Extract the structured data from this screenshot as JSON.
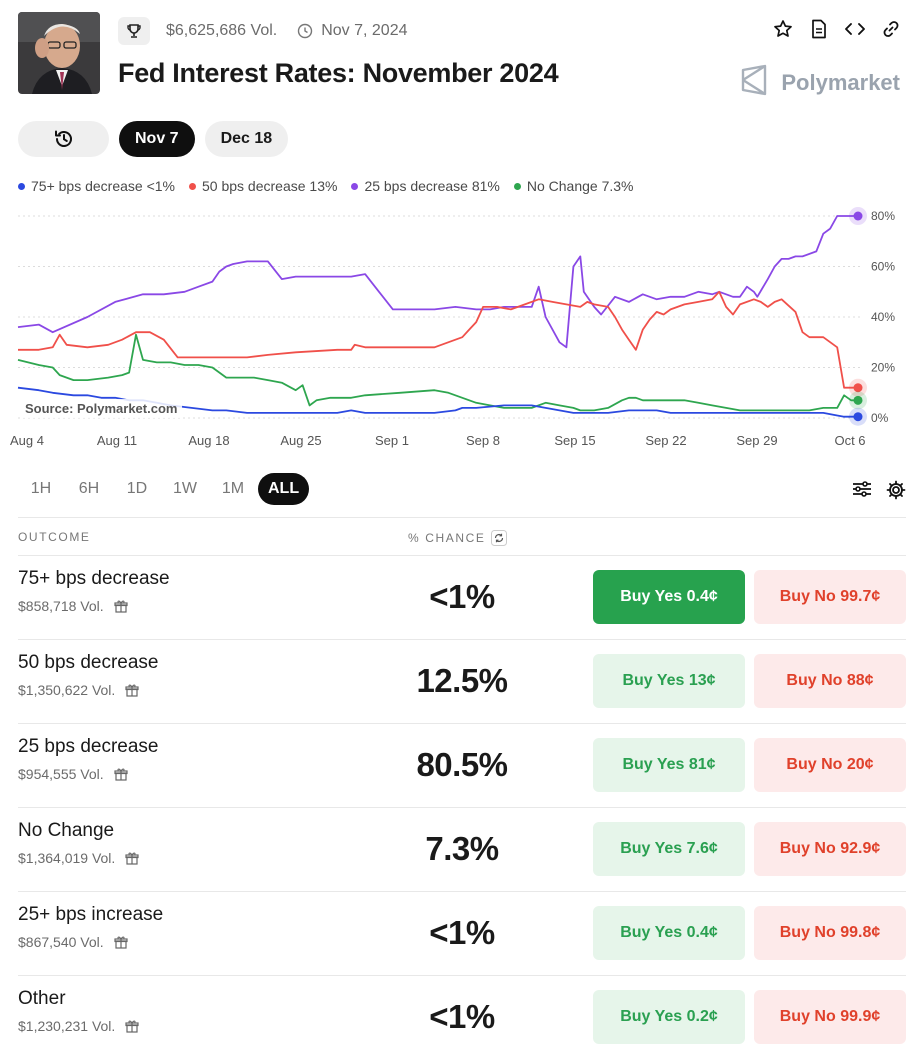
{
  "market": {
    "volume": "$6,625,686 Vol.",
    "date": "Nov 7, 2024",
    "title": "Fed Interest Rates: November 2024",
    "brand": "Polymarket",
    "icons": [
      "star-icon",
      "document-icon",
      "code-icon",
      "link-icon"
    ]
  },
  "date_tabs": [
    {
      "label": "Nov 7",
      "active": true
    },
    {
      "label": "Dec 18",
      "active": false
    }
  ],
  "legend": [
    {
      "label": "75+ bps decrease <1%",
      "color": "#2b49e0"
    },
    {
      "label": "50 bps decrease 13%",
      "color": "#f0504a"
    },
    {
      "label": "25 bps decrease 81%",
      "color": "#8a48e6"
    },
    {
      "label": "No Change 7.3%",
      "color": "#2ea64f"
    }
  ],
  "chart_data": {
    "type": "line",
    "x_ticks": [
      "Aug 4",
      "Aug 11",
      "Aug 18",
      "Aug 25",
      "Sep 1",
      "Sep 8",
      "Sep 15",
      "Sep 22",
      "Sep 29",
      "Oct 6"
    ],
    "y_ticks": [
      "80%",
      "60%",
      "40%",
      "20%",
      "0%"
    ],
    "ylim": [
      0,
      85
    ],
    "source": "Source: Polymarket.com",
    "series": [
      {
        "name": "25 bps decrease",
        "color": "#8a48e6",
        "points": [
          [
            0,
            36
          ],
          [
            3,
            37
          ],
          [
            5,
            34
          ],
          [
            10,
            40
          ],
          [
            14,
            46
          ],
          [
            18,
            49
          ],
          [
            21,
            49
          ],
          [
            24,
            50
          ],
          [
            26,
            52
          ],
          [
            28,
            54
          ],
          [
            29,
            58
          ],
          [
            30,
            60
          ],
          [
            31,
            61
          ],
          [
            33,
            62
          ],
          [
            36,
            62
          ],
          [
            38,
            55
          ],
          [
            40,
            56
          ],
          [
            43,
            56
          ],
          [
            46,
            56
          ],
          [
            48,
            56
          ],
          [
            50,
            57
          ],
          [
            52,
            50
          ],
          [
            54,
            43
          ],
          [
            56,
            43
          ],
          [
            60,
            43
          ],
          [
            63,
            44
          ],
          [
            66,
            43
          ],
          [
            68,
            43
          ],
          [
            70,
            44
          ],
          [
            72,
            44
          ],
          [
            74,
            44
          ],
          [
            75,
            52
          ],
          [
            76,
            40
          ],
          [
            78,
            30
          ],
          [
            79,
            28
          ],
          [
            80,
            60
          ],
          [
            81,
            64
          ],
          [
            81.5,
            50
          ],
          [
            83,
            44
          ],
          [
            84,
            41
          ],
          [
            86,
            48
          ],
          [
            88,
            46
          ],
          [
            90,
            49
          ],
          [
            92,
            47
          ],
          [
            94,
            48
          ],
          [
            96,
            48
          ],
          [
            98,
            50
          ],
          [
            100,
            49
          ],
          [
            101,
            50
          ],
          [
            103,
            48
          ],
          [
            104,
            48
          ],
          [
            105,
            52
          ],
          [
            106,
            50
          ],
          [
            106.5,
            48
          ],
          [
            108,
            55
          ],
          [
            109,
            60
          ],
          [
            110,
            63
          ],
          [
            111,
            63
          ],
          [
            112,
            64
          ],
          [
            113,
            64
          ],
          [
            115,
            66
          ],
          [
            116,
            73
          ],
          [
            117,
            75
          ],
          [
            118,
            80
          ],
          [
            119,
            80
          ],
          [
            121,
            80
          ]
        ]
      },
      {
        "name": "50 bps decrease",
        "color": "#f0504a",
        "points": [
          [
            0,
            27
          ],
          [
            3,
            27
          ],
          [
            5,
            28
          ],
          [
            6,
            33
          ],
          [
            7,
            29
          ],
          [
            10,
            28
          ],
          [
            13,
            29
          ],
          [
            15,
            31
          ],
          [
            17,
            34
          ],
          [
            19,
            34
          ],
          [
            21,
            31
          ],
          [
            23,
            24
          ],
          [
            25,
            24
          ],
          [
            30,
            24
          ],
          [
            33,
            24
          ],
          [
            36,
            25
          ],
          [
            40,
            26
          ],
          [
            46,
            27
          ],
          [
            48,
            27
          ],
          [
            48.5,
            29
          ],
          [
            50,
            28
          ],
          [
            55,
            28
          ],
          [
            60,
            28
          ],
          [
            64,
            32
          ],
          [
            65,
            35
          ],
          [
            66,
            38
          ],
          [
            67,
            44
          ],
          [
            69,
            44
          ],
          [
            71,
            43
          ],
          [
            73,
            45
          ],
          [
            75,
            47
          ],
          [
            77,
            46
          ],
          [
            79,
            45
          ],
          [
            81,
            44
          ],
          [
            82,
            46
          ],
          [
            83,
            45
          ],
          [
            85,
            44
          ],
          [
            86,
            40
          ],
          [
            87,
            35
          ],
          [
            88,
            31
          ],
          [
            89,
            27
          ],
          [
            90,
            35
          ],
          [
            91,
            39
          ],
          [
            92,
            42
          ],
          [
            93,
            41
          ],
          [
            94,
            43
          ],
          [
            96,
            45
          ],
          [
            98,
            46
          ],
          [
            100,
            47
          ],
          [
            101,
            50
          ],
          [
            102,
            44
          ],
          [
            103,
            41
          ],
          [
            104,
            45
          ],
          [
            106,
            47
          ],
          [
            107,
            46
          ],
          [
            108,
            44
          ],
          [
            109,
            46
          ],
          [
            110,
            47
          ],
          [
            112,
            42
          ],
          [
            113,
            34
          ],
          [
            114,
            32
          ],
          [
            116,
            32
          ],
          [
            118,
            28
          ],
          [
            119,
            12
          ],
          [
            120,
            12
          ],
          [
            121,
            12
          ]
        ]
      },
      {
        "name": "No Change",
        "color": "#2ea64f",
        "points": [
          [
            0,
            23
          ],
          [
            3,
            21
          ],
          [
            5,
            20
          ],
          [
            6,
            17
          ],
          [
            8,
            15
          ],
          [
            10,
            15
          ],
          [
            13,
            16
          ],
          [
            15,
            17
          ],
          [
            16,
            18
          ],
          [
            17,
            33
          ],
          [
            18,
            23
          ],
          [
            20,
            22
          ],
          [
            22,
            22
          ],
          [
            24,
            21
          ],
          [
            26,
            21
          ],
          [
            28,
            20
          ],
          [
            30,
            16
          ],
          [
            32,
            16
          ],
          [
            34,
            16
          ],
          [
            36,
            15
          ],
          [
            38,
            14
          ],
          [
            40,
            11
          ],
          [
            41,
            13
          ],
          [
            42,
            5
          ],
          [
            43,
            7
          ],
          [
            45,
            8
          ],
          [
            48,
            8
          ],
          [
            50,
            9
          ],
          [
            55,
            10
          ],
          [
            60,
            11
          ],
          [
            62,
            10
          ],
          [
            64,
            8
          ],
          [
            66,
            6
          ],
          [
            68,
            5
          ],
          [
            70,
            4
          ],
          [
            72,
            4
          ],
          [
            74,
            4
          ],
          [
            76,
            6
          ],
          [
            78,
            5
          ],
          [
            80,
            4
          ],
          [
            81,
            3
          ],
          [
            83,
            3
          ],
          [
            85,
            4
          ],
          [
            87,
            7
          ],
          [
            88,
            8
          ],
          [
            89,
            8
          ],
          [
            90,
            7
          ],
          [
            92,
            7
          ],
          [
            94,
            7
          ],
          [
            96,
            7
          ],
          [
            98,
            6
          ],
          [
            100,
            5
          ],
          [
            102,
            4
          ],
          [
            104,
            3
          ],
          [
            106,
            3
          ],
          [
            108,
            3
          ],
          [
            110,
            3
          ],
          [
            112,
            3
          ],
          [
            114,
            3
          ],
          [
            116,
            4
          ],
          [
            118,
            4
          ],
          [
            119,
            9
          ],
          [
            120,
            7
          ],
          [
            121,
            7
          ]
        ]
      },
      {
        "name": "75+ bps decrease",
        "color": "#2b49e0",
        "points": [
          [
            0,
            12
          ],
          [
            3,
            11
          ],
          [
            5,
            10
          ],
          [
            8,
            9
          ],
          [
            10,
            9
          ],
          [
            12,
            8
          ],
          [
            14,
            8
          ],
          [
            16,
            7
          ],
          [
            18,
            7
          ],
          [
            20,
            6
          ],
          [
            22,
            5
          ],
          [
            25,
            4
          ],
          [
            28,
            3
          ],
          [
            30,
            3
          ],
          [
            33,
            2
          ],
          [
            36,
            2
          ],
          [
            40,
            2
          ],
          [
            43,
            2
          ],
          [
            46,
            2
          ],
          [
            48,
            3
          ],
          [
            50,
            2
          ],
          [
            55,
            2
          ],
          [
            60,
            2
          ],
          [
            63,
            3
          ],
          [
            64,
            4
          ],
          [
            66,
            4
          ],
          [
            70,
            5
          ],
          [
            72,
            5
          ],
          [
            74,
            5
          ],
          [
            76,
            4
          ],
          [
            78,
            3
          ],
          [
            80,
            2
          ],
          [
            82,
            2
          ],
          [
            85,
            2
          ],
          [
            88,
            3
          ],
          [
            90,
            3
          ],
          [
            92,
            3
          ],
          [
            94,
            2
          ],
          [
            96,
            2
          ],
          [
            98,
            2
          ],
          [
            100,
            2
          ],
          [
            102,
            2
          ],
          [
            104,
            2
          ],
          [
            106,
            2
          ],
          [
            108,
            2
          ],
          [
            110,
            2
          ],
          [
            112,
            2
          ],
          [
            114,
            2
          ],
          [
            116,
            2
          ],
          [
            118,
            1
          ],
          [
            119,
            0.5
          ],
          [
            120,
            0.5
          ],
          [
            121,
            0.5
          ]
        ]
      }
    ]
  },
  "time_ranges": [
    {
      "label": "1H",
      "active": false
    },
    {
      "label": "6H",
      "active": false
    },
    {
      "label": "1D",
      "active": false
    },
    {
      "label": "1W",
      "active": false
    },
    {
      "label": "1M",
      "active": false
    },
    {
      "label": "ALL",
      "active": true
    }
  ],
  "columns": {
    "outcome": "OUTCOME",
    "chance": "% CHANCE"
  },
  "outcomes": [
    {
      "name": "75+ bps decrease",
      "volume": "$858,718 Vol.",
      "chance": "<1%",
      "yes": "Buy Yes 0.4¢",
      "no": "Buy No 99.7¢",
      "selected": true
    },
    {
      "name": "50 bps decrease",
      "volume": "$1,350,622 Vol.",
      "chance": "12.5%",
      "yes": "Buy Yes 13¢",
      "no": "Buy No 88¢",
      "selected": false
    },
    {
      "name": "25 bps decrease",
      "volume": "$954,555 Vol.",
      "chance": "80.5%",
      "yes": "Buy Yes 81¢",
      "no": "Buy No 20¢",
      "selected": false
    },
    {
      "name": "No Change",
      "volume": "$1,364,019 Vol.",
      "chance": "7.3%",
      "yes": "Buy Yes 7.6¢",
      "no": "Buy No 92.9¢",
      "selected": false
    },
    {
      "name": "25+ bps increase",
      "volume": "$867,540 Vol.",
      "chance": "<1%",
      "yes": "Buy Yes 0.4¢",
      "no": "Buy No 99.8¢",
      "selected": false
    },
    {
      "name": "Other",
      "volume": "$1,230,231 Vol.",
      "chance": "<1%",
      "yes": "Buy Yes 0.2¢",
      "no": "Buy No 99.9¢",
      "selected": false
    }
  ]
}
